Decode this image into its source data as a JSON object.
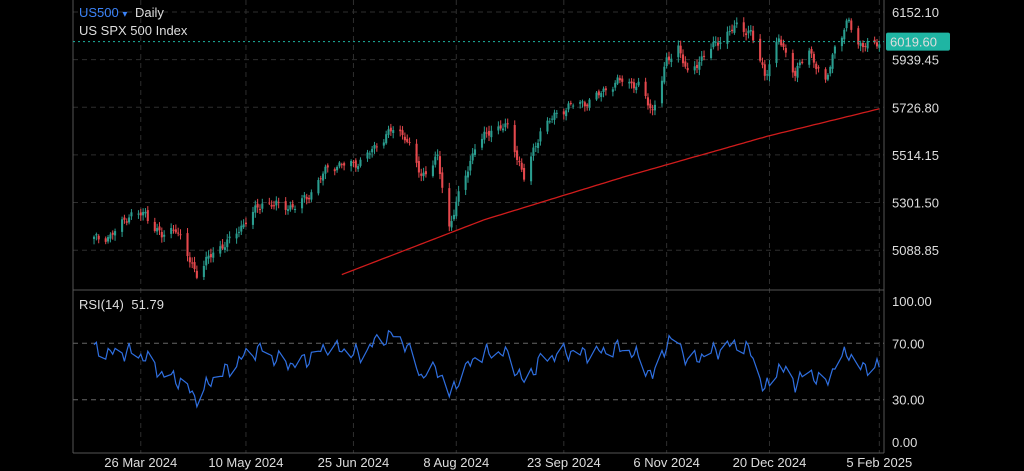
{
  "header": {
    "symbol": "US500",
    "symbol_arrow": "▾",
    "interval": "Daily",
    "instrument": "US SPX 500 Index"
  },
  "rsi": {
    "label": "RSI(14)",
    "value": "51.79",
    "levels": [
      "100.00",
      "70.00",
      "30.00",
      "0.00"
    ]
  },
  "price_axis": {
    "ticks": [
      "6152.10",
      "5939.45",
      "5726.80",
      "5514.15",
      "5301.50",
      "5088.85"
    ],
    "last_price": "6019.60"
  },
  "time_axis": {
    "ticks": [
      "26 Mar 2024",
      "10 May 2024",
      "25 Jun 2024",
      "8 Aug 2024",
      "23 Sep 2024",
      "6 Nov 2024",
      "20 Dec 2024",
      "5 Feb 2025"
    ]
  },
  "colors": {
    "up": "#2a9d8f",
    "down": "#e5484d",
    "ma": "#d01c1c",
    "rsi": "#2f6fe0",
    "symbol": "#3b82f6",
    "last_price_badge": "#1fb5a3"
  },
  "chart_data": [
    {
      "type": "candlestick",
      "interval": "Daily",
      "x_start": "2024-03-06",
      "x_end": "2025-02-05",
      "ylim": [
        5050,
        6200
      ],
      "grid": true,
      "overlay": "moving average (red)",
      "close_keypoints": [
        {
          "x": "2024-03-06",
          "y": 5140
        },
        {
          "x": "2024-03-13",
          "y": 5150
        },
        {
          "x": "2024-03-21",
          "y": 5245
        },
        {
          "x": "2024-03-28",
          "y": 5250
        },
        {
          "x": "2024-04-04",
          "y": 5150
        },
        {
          "x": "2024-04-10",
          "y": 5190
        },
        {
          "x": "2024-04-15",
          "y": 5060
        },
        {
          "x": "2024-04-19",
          "y": 4985
        },
        {
          "x": "2024-04-26",
          "y": 5080
        },
        {
          "x": "2024-05-03",
          "y": 5130
        },
        {
          "x": "2024-05-10",
          "y": 5220
        },
        {
          "x": "2024-05-17",
          "y": 5300
        },
        {
          "x": "2024-05-23",
          "y": 5290
        },
        {
          "x": "2024-05-31",
          "y": 5280
        },
        {
          "x": "2024-06-07",
          "y": 5345
        },
        {
          "x": "2024-06-14",
          "y": 5460
        },
        {
          "x": "2024-06-21",
          "y": 5470
        },
        {
          "x": "2024-06-28",
          "y": 5480
        },
        {
          "x": "2024-07-05",
          "y": 5560
        },
        {
          "x": "2024-07-12",
          "y": 5630
        },
        {
          "x": "2024-07-17",
          "y": 5600
        },
        {
          "x": "2024-07-24",
          "y": 5420
        },
        {
          "x": "2024-07-31",
          "y": 5500
        },
        {
          "x": "2024-08-05",
          "y": 5190
        },
        {
          "x": "2024-08-09",
          "y": 5330
        },
        {
          "x": "2024-08-16",
          "y": 5550
        },
        {
          "x": "2024-08-23",
          "y": 5630
        },
        {
          "x": "2024-08-30",
          "y": 5640
        },
        {
          "x": "2024-09-06",
          "y": 5410
        },
        {
          "x": "2024-09-13",
          "y": 5620
        },
        {
          "x": "2024-09-20",
          "y": 5700
        },
        {
          "x": "2024-09-27",
          "y": 5740
        },
        {
          "x": "2024-10-04",
          "y": 5750
        },
        {
          "x": "2024-10-11",
          "y": 5810
        },
        {
          "x": "2024-10-18",
          "y": 5850
        },
        {
          "x": "2024-10-25",
          "y": 5820
        },
        {
          "x": "2024-10-31",
          "y": 5710
        },
        {
          "x": "2024-11-06",
          "y": 5930
        },
        {
          "x": "2024-11-11",
          "y": 6000
        },
        {
          "x": "2024-11-15",
          "y": 5870
        },
        {
          "x": "2024-11-22",
          "y": 5960
        },
        {
          "x": "2024-11-29",
          "y": 6030
        },
        {
          "x": "2024-12-06",
          "y": 6090
        },
        {
          "x": "2024-12-12",
          "y": 6060
        },
        {
          "x": "2024-12-18",
          "y": 5870
        },
        {
          "x": "2024-12-24",
          "y": 6030
        },
        {
          "x": "2024-12-31",
          "y": 5880
        },
        {
          "x": "2025-01-06",
          "y": 5980
        },
        {
          "x": "2025-01-13",
          "y": 5830
        },
        {
          "x": "2025-01-17",
          "y": 6000
        },
        {
          "x": "2025-01-23",
          "y": 6110
        },
        {
          "x": "2025-01-27",
          "y": 6010
        },
        {
          "x": "2025-02-03",
          "y": 6000
        },
        {
          "x": "2025-02-05",
          "y": 6019.6
        }
      ],
      "ma_keypoints": [
        {
          "x": "2024-06-20",
          "y": 4980
        },
        {
          "x": "2024-08-20",
          "y": 5225
        },
        {
          "x": "2024-10-20",
          "y": 5420
        },
        {
          "x": "2024-12-20",
          "y": 5600
        },
        {
          "x": "2025-02-05",
          "y": 5720
        }
      ]
    },
    {
      "type": "line",
      "title": "RSI(14)",
      "ylim": [
        0,
        100
      ],
      "reference_lines": [
        70,
        30
      ],
      "last_value": 51.79,
      "keypoints": [
        {
          "x": "2024-03-06",
          "y": 66
        },
        {
          "x": "2024-03-13",
          "y": 63
        },
        {
          "x": "2024-03-21",
          "y": 64
        },
        {
          "x": "2024-03-28",
          "y": 60
        },
        {
          "x": "2024-04-04",
          "y": 48
        },
        {
          "x": "2024-04-10",
          "y": 45
        },
        {
          "x": "2024-04-15",
          "y": 38
        },
        {
          "x": "2024-04-19",
          "y": 31
        },
        {
          "x": "2024-04-26",
          "y": 45
        },
        {
          "x": "2024-05-03",
          "y": 52
        },
        {
          "x": "2024-05-10",
          "y": 62
        },
        {
          "x": "2024-05-17",
          "y": 66
        },
        {
          "x": "2024-05-23",
          "y": 58
        },
        {
          "x": "2024-05-31",
          "y": 55
        },
        {
          "x": "2024-06-07",
          "y": 60
        },
        {
          "x": "2024-06-14",
          "y": 68
        },
        {
          "x": "2024-06-21",
          "y": 65
        },
        {
          "x": "2024-06-28",
          "y": 62
        },
        {
          "x": "2024-07-05",
          "y": 72
        },
        {
          "x": "2024-07-12",
          "y": 76
        },
        {
          "x": "2024-07-17",
          "y": 70
        },
        {
          "x": "2024-07-24",
          "y": 47
        },
        {
          "x": "2024-07-31",
          "y": 52
        },
        {
          "x": "2024-08-05",
          "y": 33
        },
        {
          "x": "2024-08-09",
          "y": 45
        },
        {
          "x": "2024-08-16",
          "y": 60
        },
        {
          "x": "2024-08-23",
          "y": 64
        },
        {
          "x": "2024-08-30",
          "y": 62
        },
        {
          "x": "2024-09-06",
          "y": 42
        },
        {
          "x": "2024-09-13",
          "y": 58
        },
        {
          "x": "2024-09-20",
          "y": 62
        },
        {
          "x": "2024-09-27",
          "y": 64
        },
        {
          "x": "2024-10-04",
          "y": 62
        },
        {
          "x": "2024-10-11",
          "y": 65
        },
        {
          "x": "2024-10-18",
          "y": 67
        },
        {
          "x": "2024-10-25",
          "y": 60
        },
        {
          "x": "2024-10-31",
          "y": 46
        },
        {
          "x": "2024-11-06",
          "y": 70
        },
        {
          "x": "2024-11-11",
          "y": 72
        },
        {
          "x": "2024-11-15",
          "y": 56
        },
        {
          "x": "2024-11-22",
          "y": 62
        },
        {
          "x": "2024-11-29",
          "y": 66
        },
        {
          "x": "2024-12-06",
          "y": 70
        },
        {
          "x": "2024-12-12",
          "y": 64
        },
        {
          "x": "2024-12-18",
          "y": 36
        },
        {
          "x": "2024-12-24",
          "y": 54
        },
        {
          "x": "2024-12-31",
          "y": 42
        },
        {
          "x": "2025-01-06",
          "y": 50
        },
        {
          "x": "2025-01-13",
          "y": 40
        },
        {
          "x": "2025-01-17",
          "y": 55
        },
        {
          "x": "2025-01-23",
          "y": 64
        },
        {
          "x": "2025-01-27",
          "y": 52
        },
        {
          "x": "2025-02-03",
          "y": 55
        },
        {
          "x": "2025-02-05",
          "y": 51.79
        }
      ]
    }
  ]
}
